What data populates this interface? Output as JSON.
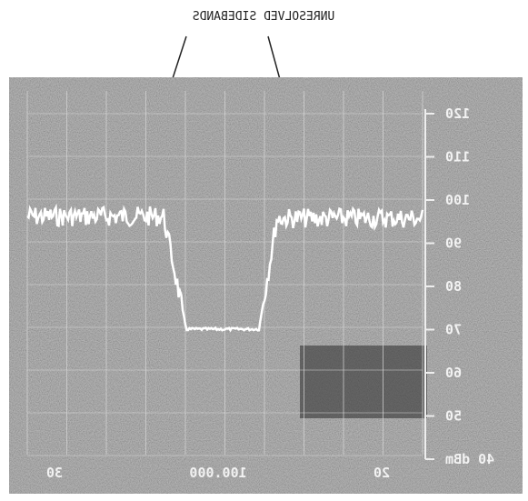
{
  "annotation": "UNRESOLVED SIDEBANDS",
  "scale_labels": [
    "120",
    "110",
    "100",
    "90",
    "80",
    "70",
    "60",
    "50",
    "40 dBm"
  ],
  "bottom_labels": [
    "30",
    "100.000",
    "20"
  ]
}
